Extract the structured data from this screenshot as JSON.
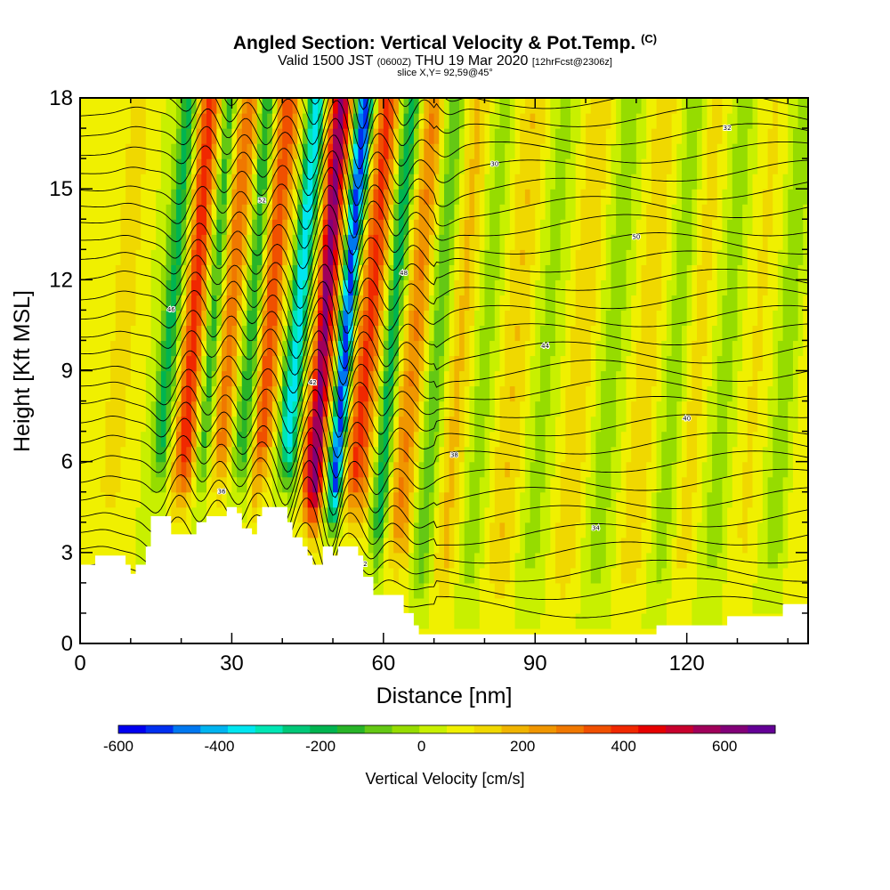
{
  "header": {
    "title": "Angled Section: Vertical Velocity & Pot.Temp.",
    "title_mark": "(C)",
    "valid_prefix": "Valid 1500 JST",
    "valid_utc": "(0600Z)",
    "valid_date": "THU 19 Mar 2020",
    "forecast": "[12hrFcst@2306z]",
    "slice": "slice X,Y= 92,59@45°"
  },
  "chart_data": {
    "type": "heatmap",
    "xlabel": "Distance [nm]",
    "ylabel": "Height [Kft MSL]",
    "xlim": [
      0,
      144
    ],
    "ylim": [
      0,
      18
    ],
    "x_ticks": [
      0,
      30,
      60,
      90,
      120
    ],
    "x_tick_labels": [
      "0",
      "30",
      "60",
      "90",
      "120"
    ],
    "y_ticks": [
      0,
      3,
      6,
      9,
      12,
      15,
      18
    ],
    "y_tick_labels": [
      "0",
      "3",
      "6",
      "9",
      "12",
      "15",
      "18"
    ],
    "background_value_cms": 50,
    "vertical_velocity_bands": [
      {
        "x": 5,
        "w": 2.5,
        "v": 90
      },
      {
        "x": 15,
        "w": 1.8,
        "v": -240
      },
      {
        "x": 19.5,
        "w": 2.2,
        "v": 360
      },
      {
        "x": 23.5,
        "w": 1.6,
        "v": -200
      },
      {
        "x": 27,
        "w": 2.0,
        "v": 260
      },
      {
        "x": 31,
        "w": 1.7,
        "v": -220
      },
      {
        "x": 35,
        "w": 2.0,
        "v": 320
      },
      {
        "x": 40,
        "w": 1.6,
        "v": -420
      },
      {
        "x": 45,
        "w": 2.0,
        "v": 560
      },
      {
        "x": 49.5,
        "w": 1.4,
        "v": -600
      },
      {
        "x": 53.5,
        "w": 2.2,
        "v": 340
      },
      {
        "x": 58,
        "w": 1.6,
        "v": -260
      },
      {
        "x": 62,
        "w": 2.2,
        "v": 220
      },
      {
        "x": 66.5,
        "w": 2.0,
        "v": -150
      },
      {
        "x": 71,
        "w": 2.5,
        "v": 120
      },
      {
        "x": 76,
        "w": 2.5,
        "v": -80
      },
      {
        "x": 82,
        "w": 3.0,
        "v": 110
      },
      {
        "x": 88,
        "w": 3.0,
        "v": -70
      },
      {
        "x": 95,
        "w": 3.0,
        "v": 100
      },
      {
        "x": 101,
        "w": 3.0,
        "v": -80
      },
      {
        "x": 108,
        "w": 3.0,
        "v": 90
      },
      {
        "x": 114,
        "w": 2.5,
        "v": -90
      },
      {
        "x": 118,
        "w": 2.5,
        "v": 80
      },
      {
        "x": 124,
        "w": 2.5,
        "v": -80
      },
      {
        "x": 130,
        "w": 3.0,
        "v": 60
      },
      {
        "x": 136,
        "w": 2.5,
        "v": -90
      },
      {
        "x": 141,
        "w": 2.5,
        "v": 50
      }
    ],
    "terrain_kft": [
      [
        0,
        2.6
      ],
      [
        3,
        2.9
      ],
      [
        8,
        2.9
      ],
      [
        9,
        2.6
      ],
      [
        10,
        2.3
      ],
      [
        11,
        2.6
      ],
      [
        13,
        3.2
      ],
      [
        14,
        4.2
      ],
      [
        17,
        4.2
      ],
      [
        18,
        3.6
      ],
      [
        22,
        3.6
      ],
      [
        23,
        4.0
      ],
      [
        25,
        4.2
      ],
      [
        28,
        4.2
      ],
      [
        29,
        4.5
      ],
      [
        31,
        4.3
      ],
      [
        32,
        3.8
      ],
      [
        34,
        3.6
      ],
      [
        35,
        4.2
      ],
      [
        36,
        4.5
      ],
      [
        40,
        4.5
      ],
      [
        41,
        4.0
      ],
      [
        42,
        3.5
      ],
      [
        44,
        3.2
      ],
      [
        45,
        2.9
      ],
      [
        46,
        2.6
      ],
      [
        48,
        3.2
      ],
      [
        50,
        2.9
      ],
      [
        51,
        3.2
      ],
      [
        53,
        3.2
      ],
      [
        55,
        2.9
      ],
      [
        56,
        2.2
      ],
      [
        58,
        1.6
      ],
      [
        63,
        1.6
      ],
      [
        64,
        1.0
      ],
      [
        66,
        0.6
      ],
      [
        67,
        0.3
      ],
      [
        113,
        0.3
      ],
      [
        114,
        0.6
      ],
      [
        121,
        0.6
      ],
      [
        127,
        0.6
      ],
      [
        128,
        0.9
      ],
      [
        138,
        0.9
      ],
      [
        139,
        1.3
      ],
      [
        144,
        1.3
      ]
    ],
    "potential_temperature_contour_labels_c": [
      "30",
      "32",
      "34",
      "36",
      "38",
      "40",
      "42",
      "44",
      "46",
      "48",
      "50",
      "52"
    ],
    "colorbar": {
      "label": "Vertical Velocity [cm/s]",
      "range": [
        -600,
        700
      ],
      "tick_values": [
        -600,
        -400,
        -200,
        0,
        200,
        400,
        600
      ],
      "tick_labels": [
        "-600",
        "-400",
        "-200",
        "0",
        "200",
        "400",
        "600"
      ],
      "colors": [
        "#0000f0",
        "#0030f0",
        "#0078f0",
        "#00b4f0",
        "#00e6f0",
        "#00e6b4",
        "#00c878",
        "#00b450",
        "#28b428",
        "#64c814",
        "#96dc00",
        "#c8f000",
        "#f0f000",
        "#f0d800",
        "#f0b400",
        "#f09600",
        "#f07800",
        "#f05000",
        "#f02800",
        "#e60000",
        "#c8002d",
        "#a0005a",
        "#820078",
        "#640096"
      ]
    }
  }
}
